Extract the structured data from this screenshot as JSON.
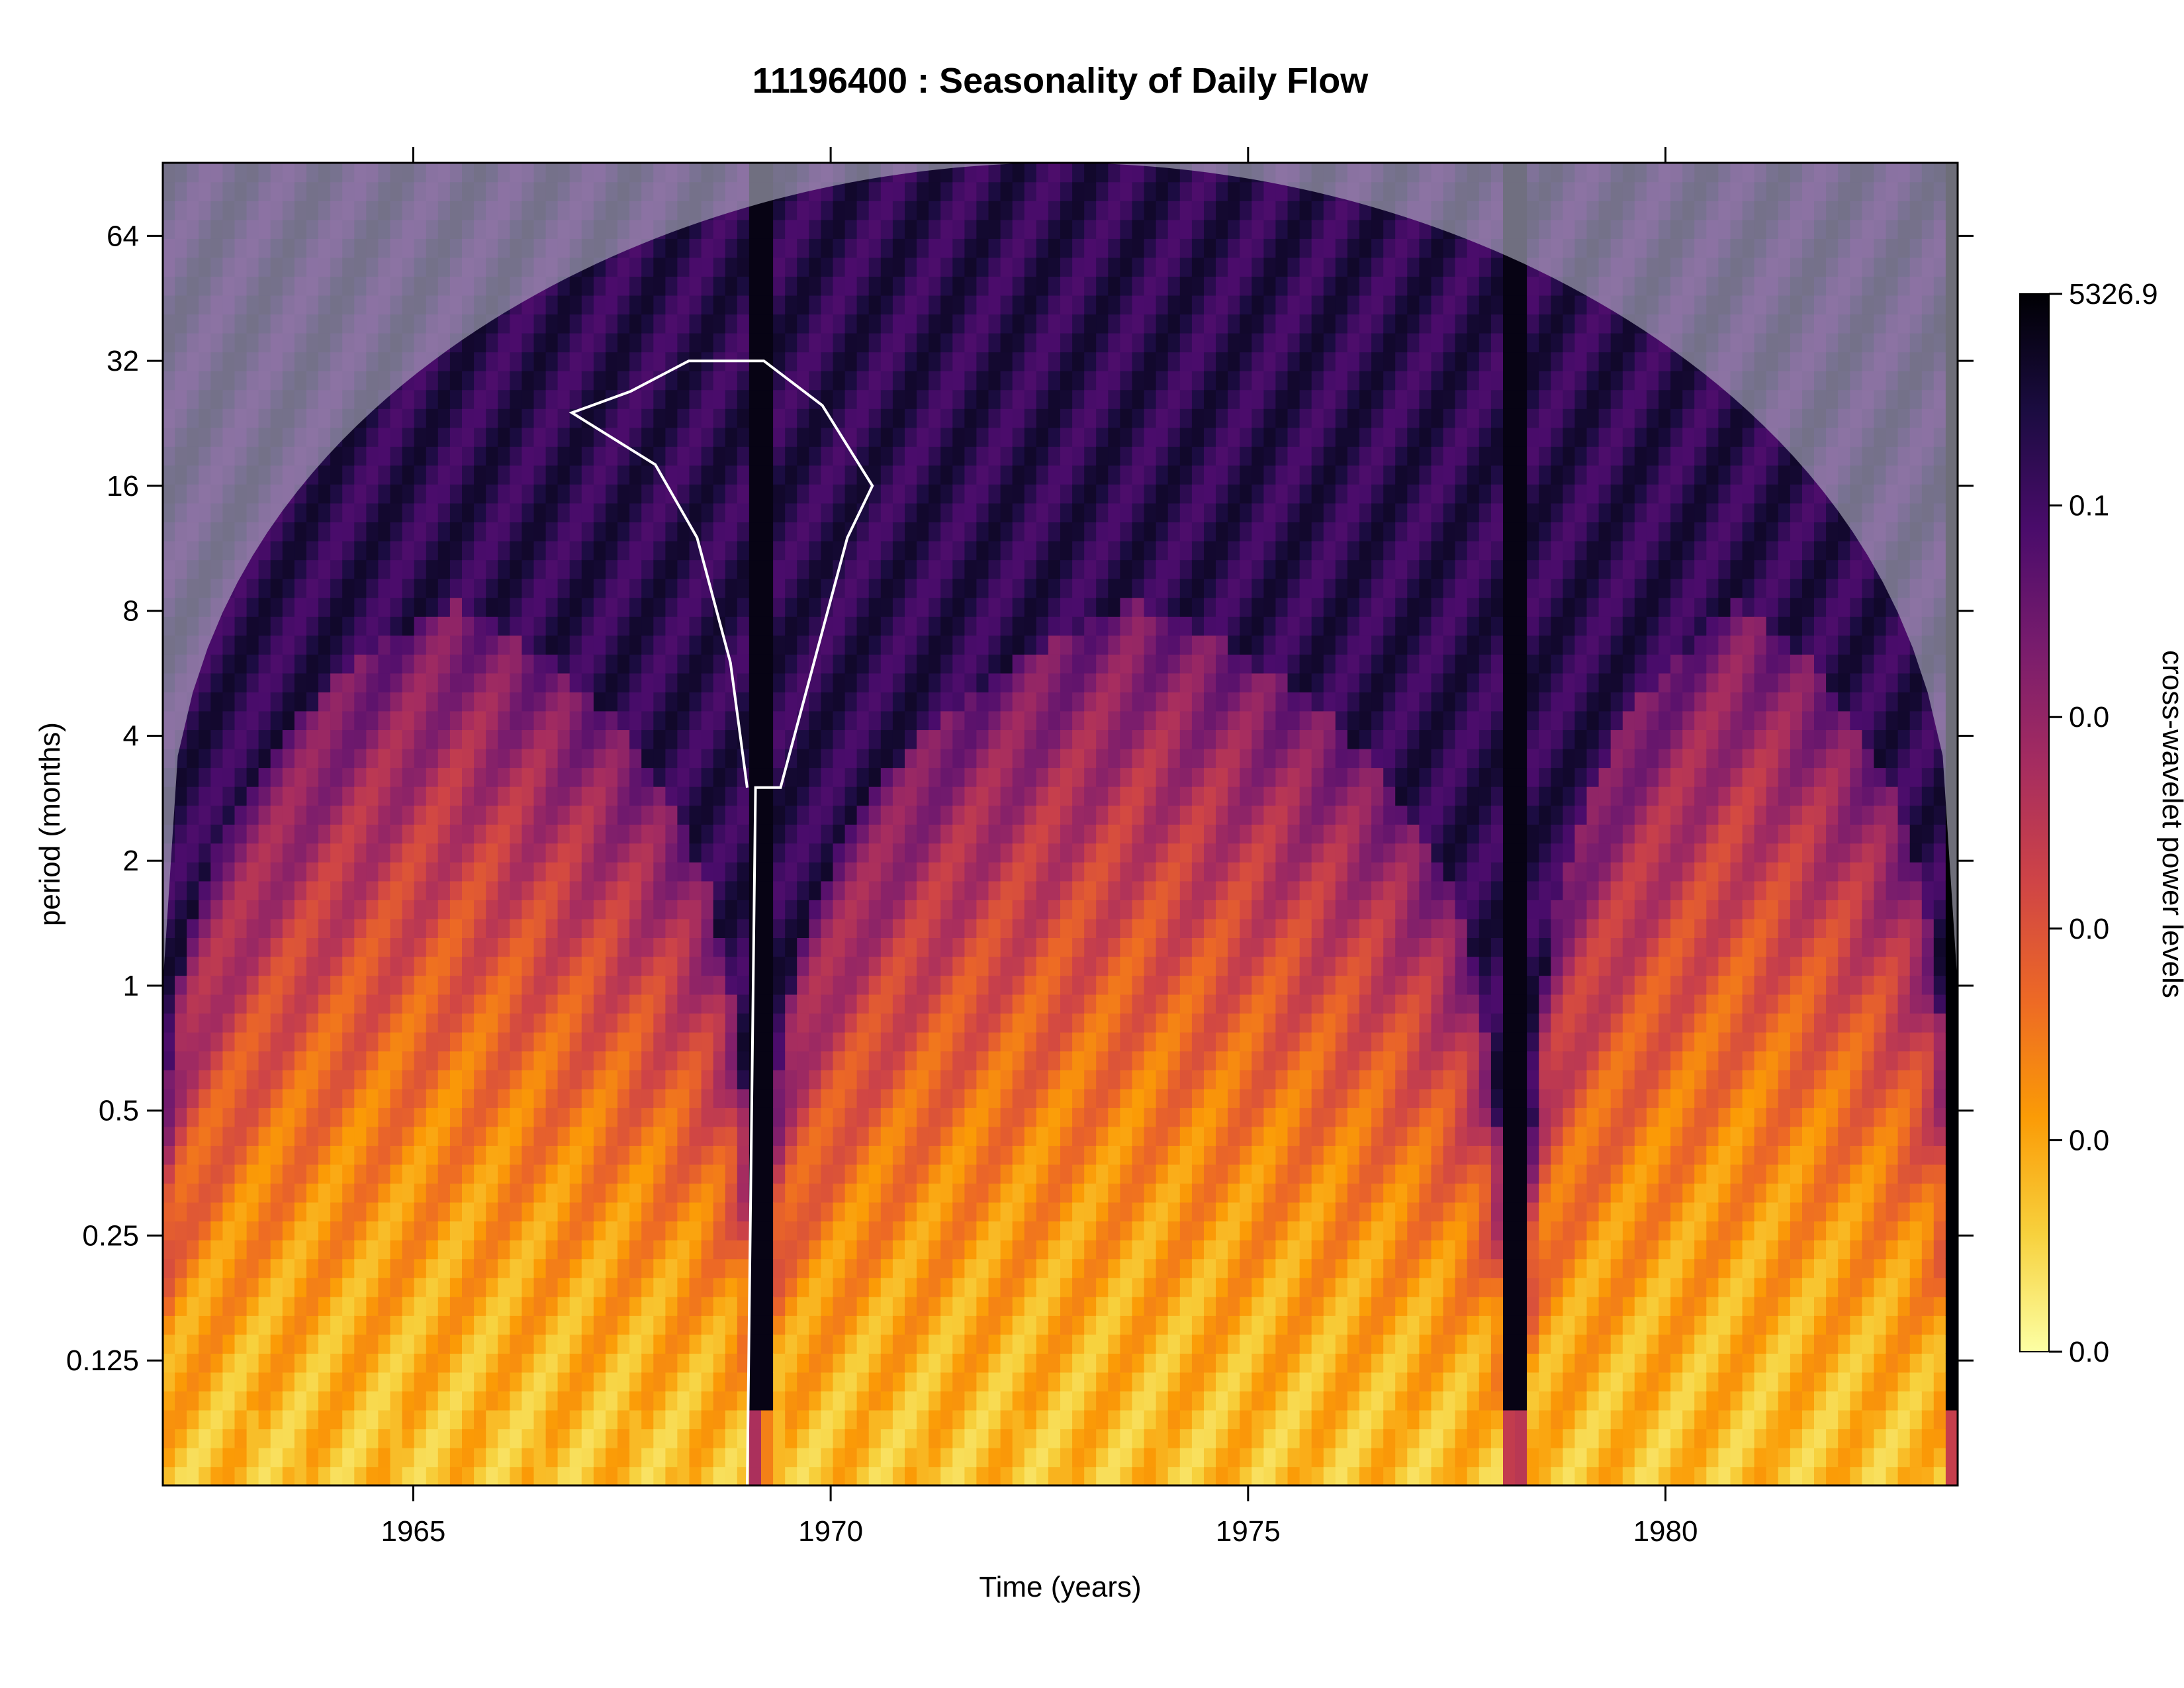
{
  "chart_data": {
    "type": "heatmap",
    "title": "11196400 : Seasonality of Daily Flow",
    "xlabel": "Time (years)",
    "ylabel": "period (months)",
    "xlim": [
      1962.0,
      1983.5
    ],
    "y_scale": "log2",
    "ylim": [
      0.0625,
      96
    ],
    "x_ticks": [
      1965,
      1970,
      1975,
      1980
    ],
    "y_ticks": [
      0.125,
      0.25,
      0.5,
      1,
      2,
      4,
      8,
      16,
      32,
      64
    ],
    "y_tick_labels": [
      "0.125",
      "0.25",
      "0.5",
      "1",
      "2",
      "4",
      "8",
      "16",
      "32",
      "64"
    ],
    "colorbar": {
      "label": "cross-wavelet power levels",
      "tick_labels": [
        "0.0",
        "0.0",
        "0.0",
        "0.0",
        "0.1",
        "5326.9"
      ],
      "colors": [
        "#fcffa4",
        "#f7d13d",
        "#fb9b06",
        "#ed6925",
        "#cf4446",
        "#a52c60",
        "#781c6d",
        "#4a0c6b",
        "#1b0c41",
        "#000004"
      ]
    },
    "cone_of_influence": {
      "edge_period_months": 1.0,
      "center_period_months": 96,
      "shade": "grey, semi-transparent"
    },
    "events": [
      {
        "start": 1962.0,
        "end": 1969.0,
        "peak": 1965.2
      },
      {
        "start": 1969.3,
        "end": 1978.0,
        "peak": 1973.0
      },
      {
        "start": 1978.4,
        "end": 1983.4,
        "peak": 1981.0
      }
    ],
    "low_power_gaps_years": [
      1969.15,
      1978.2
    ],
    "significance_contours_years": [
      {
        "x": [
          1969.0,
          1969.1,
          1969.4,
          1970.2,
          1970.5,
          1969.9,
          1969.2,
          1968.3,
          1967.6,
          1966.9,
          1967.9,
          1968.4,
          1968.8,
          1969.0
        ],
        "y": [
          0.0625,
          3,
          3,
          12,
          16,
          25,
          32,
          32,
          27,
          24,
          18,
          12,
          6,
          3
        ]
      }
    ]
  }
}
